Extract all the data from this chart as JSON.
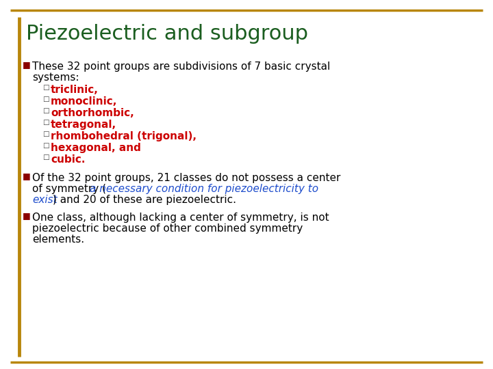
{
  "title": "Piezoelectric and subgroup",
  "title_color": "#1B5E20",
  "background_color": "#FFFFFF",
  "gold_color": "#B8860B",
  "bullet_sq_color": "#8B0000",
  "black": "#000000",
  "red_bold": "#CC0000",
  "blue_italic": "#1E4DCC",
  "subbullets": [
    "triclinic,",
    "monoclinic,",
    "orthorhombic,",
    "tetragonal,",
    "rhombohedral (trigonal),",
    "hexagonal, and",
    "cubic."
  ]
}
